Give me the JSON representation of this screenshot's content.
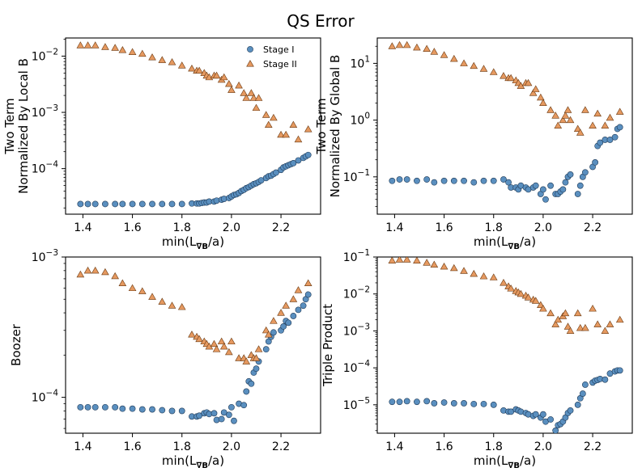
{
  "chart_data": {
    "title": "QS Error",
    "legend": {
      "placement": "top-right",
      "entries": [
        {
          "label": "Stage I",
          "marker": "circle",
          "color": "#5a8fbf"
        },
        {
          "label": "Stage II",
          "marker": "triangle",
          "color": "#e59960"
        }
      ]
    },
    "panels": [
      {
        "id": "two-term-local",
        "type": "scatter",
        "ylabel_lines": [
          "Two Term",
          "Normalized By Local B"
        ],
        "xlabel": "min(L",
        "xlabel_sub": "∇B",
        "xlabel_tail": "/a)",
        "xscale": "linear",
        "xlim": [
          1.33,
          2.36
        ],
        "xticks": [
          1.4,
          1.6,
          1.8,
          2.0,
          2.2
        ],
        "xtick_labels": [
          "1.4",
          "1.6",
          "1.8",
          "2.0",
          "2.2"
        ],
        "yscale": "log",
        "ylim": [
          1.55e-05,
          0.021
        ],
        "yticks": [
          0.01,
          0.001,
          0.0001
        ],
        "ytick_labels": [
          {
            "base": "10",
            "exp": "−2"
          },
          {
            "base": "10",
            "exp": "−3"
          },
          {
            "base": "10",
            "exp": "−4"
          }
        ],
        "show_legend": true,
        "series": [
          {
            "name": "Stage I",
            "x": [
              1.39,
              1.42,
              1.45,
              1.49,
              1.53,
              1.56,
              1.6,
              1.64,
              1.68,
              1.72,
              1.76,
              1.8,
              1.84,
              1.86,
              1.87,
              1.88,
              1.89,
              1.9,
              1.91,
              1.93,
              1.94,
              1.96,
              1.97,
              1.99,
              2.0,
              2.01,
              2.02,
              2.03,
              2.04,
              2.05,
              2.06,
              2.07,
              2.08,
              2.09,
              2.1,
              2.11,
              2.12,
              2.14,
              2.15,
              2.16,
              2.17,
              2.18,
              2.2,
              2.21,
              2.22,
              2.23,
              2.24,
              2.25,
              2.27,
              2.29,
              2.3,
              2.31
            ],
            "y": [
              2.35e-05,
              2.35e-05,
              2.35e-05,
              2.35e-05,
              2.35e-05,
              2.35e-05,
              2.35e-05,
              2.35e-05,
              2.35e-05,
              2.35e-05,
              2.35e-05,
              2.35e-05,
              2.4e-05,
              2.4e-05,
              2.4e-05,
              2.45e-05,
              2.5e-05,
              2.5e-05,
              2.6e-05,
              2.6e-05,
              2.7e-05,
              2.8e-05,
              2.9e-05,
              3e-05,
              3.2e-05,
              3.4e-05,
              3.5e-05,
              3.7e-05,
              4e-05,
              4.2e-05,
              4.5e-05,
              4.7e-05,
              5e-05,
              5.3e-05,
              5.5e-05,
              5.8e-05,
              6.2e-05,
              6.8e-05,
              7.3e-05,
              7.5e-05,
              8e-05,
              8.5e-05,
              9.5e-05,
              0.000105,
              0.00011,
              0.000115,
              0.00012,
              0.000125,
              0.00014,
              0.000155,
              0.000165,
              0.000175
            ]
          },
          {
            "name": "Stage II",
            "x": [
              1.39,
              1.42,
              1.45,
              1.49,
              1.53,
              1.56,
              1.6,
              1.64,
              1.68,
              1.72,
              1.76,
              1.8,
              1.84,
              1.86,
              1.87,
              1.89,
              1.9,
              1.91,
              1.93,
              1.94,
              1.96,
              1.97,
              1.99,
              2.0,
              2.03,
              2.05,
              2.06,
              2.08,
              2.09,
              2.1,
              2.11,
              2.14,
              2.15,
              2.17,
              2.2,
              2.22,
              2.25,
              2.27,
              2.31
            ],
            "y": [
              0.0155,
              0.0155,
              0.0155,
              0.0145,
              0.014,
              0.0128,
              0.0118,
              0.011,
              0.0095,
              0.0085,
              0.0078,
              0.0068,
              0.006,
              0.0055,
              0.0055,
              0.005,
              0.0045,
              0.0042,
              0.0045,
              0.0045,
              0.0038,
              0.0042,
              0.0032,
              0.0025,
              0.003,
              0.0022,
              0.0018,
              0.0022,
              0.0018,
              0.0012,
              0.0018,
              0.0009,
              0.0006,
              0.0008,
              0.0004,
              0.0004,
              0.0006,
              0.00033,
              0.0005
            ]
          }
        ]
      },
      {
        "id": "two-term-global",
        "type": "scatter",
        "ylabel_lines": [
          "Two Term",
          "Normalized By Global B"
        ],
        "xlabel": "min(L",
        "xlabel_sub": "∇B",
        "xlabel_tail": "/a)",
        "xscale": "linear",
        "xlim": [
          1.33,
          2.36
        ],
        "xticks": [
          1.4,
          1.6,
          1.8,
          2.0,
          2.2
        ],
        "xtick_labels": [
          "1.4",
          "1.6",
          "1.8",
          "2.0",
          "2.2"
        ],
        "yscale": "log",
        "ylim": [
          0.022,
          28
        ],
        "yticks": [
          10,
          1,
          0.1
        ],
        "ytick_labels": [
          {
            "base": "10",
            "exp": "1"
          },
          {
            "base": "10",
            "exp": "0"
          },
          {
            "base": "10",
            "exp": "−1"
          }
        ],
        "show_legend": false,
        "series": [
          {
            "name": "Stage I",
            "x": [
              1.39,
              1.42,
              1.45,
              1.49,
              1.53,
              1.56,
              1.6,
              1.64,
              1.68,
              1.72,
              1.76,
              1.8,
              1.84,
              1.86,
              1.87,
              1.89,
              1.9,
              1.91,
              1.93,
              1.94,
              1.96,
              1.97,
              1.99,
              2.0,
              2.01,
              2.03,
              2.05,
              2.06,
              2.07,
              2.08,
              2.09,
              2.1,
              2.11,
              2.14,
              2.15,
              2.16,
              2.17,
              2.2,
              2.21,
              2.22,
              2.23,
              2.25,
              2.27,
              2.29,
              2.3,
              2.31
            ],
            "y": [
              0.085,
              0.09,
              0.09,
              0.085,
              0.09,
              0.08,
              0.085,
              0.085,
              0.085,
              0.08,
              0.085,
              0.085,
              0.09,
              0.08,
              0.065,
              0.065,
              0.06,
              0.07,
              0.065,
              0.06,
              0.065,
              0.07,
              0.05,
              0.06,
              0.04,
              0.07,
              0.05,
              0.05,
              0.055,
              0.06,
              0.08,
              0.1,
              0.11,
              0.05,
              0.07,
              0.1,
              0.12,
              0.15,
              0.18,
              0.35,
              0.4,
              0.45,
              0.45,
              0.5,
              0.7,
              0.75
            ]
          },
          {
            "name": "Stage II",
            "x": [
              1.39,
              1.42,
              1.45,
              1.49,
              1.53,
              1.56,
              1.6,
              1.64,
              1.68,
              1.72,
              1.76,
              1.8,
              1.84,
              1.86,
              1.87,
              1.89,
              1.9,
              1.91,
              1.93,
              1.94,
              1.96,
              1.97,
              1.99,
              2.0,
              2.03,
              2.05,
              2.06,
              2.08,
              2.09,
              2.1,
              2.11,
              2.14,
              2.15,
              2.17,
              2.2,
              2.22,
              2.25,
              2.27,
              2.31
            ],
            "y": [
              20,
              21,
              21,
              19,
              18,
              16,
              14,
              12,
              10,
              9,
              8,
              7,
              6,
              5.5,
              5.5,
              5,
              4.5,
              4,
              4.5,
              4.5,
              3,
              3.5,
              2.5,
              2,
              1.5,
              1.2,
              0.8,
              1.0,
              1.2,
              1.5,
              1.0,
              0.7,
              0.6,
              1.5,
              0.8,
              1.3,
              0.8,
              1.1,
              1.4
            ]
          }
        ]
      },
      {
        "id": "boozer",
        "type": "scatter",
        "ylabel_lines": [
          "Boozer"
        ],
        "xlabel": "min(L",
        "xlabel_sub": "∇B",
        "xlabel_tail": "/a)",
        "xscale": "linear",
        "xlim": [
          1.33,
          2.36
        ],
        "xticks": [
          1.4,
          1.6,
          1.8,
          2.0,
          2.2
        ],
        "xtick_labels": [
          "1.4",
          "1.6",
          "1.8",
          "2.0",
          "2.2"
        ],
        "yscale": "log",
        "ylim": [
          5.55e-05,
          0.001
        ],
        "yticks": [
          0.001,
          0.0001
        ],
        "ytick_labels": [
          {
            "base": "10",
            "exp": "−3"
          },
          {
            "base": "10",
            "exp": "−4"
          }
        ],
        "show_legend": false,
        "series": [
          {
            "name": "Stage I",
            "x": [
              1.39,
              1.42,
              1.45,
              1.49,
              1.53,
              1.56,
              1.6,
              1.64,
              1.68,
              1.72,
              1.76,
              1.8,
              1.84,
              1.86,
              1.87,
              1.89,
              1.9,
              1.91,
              1.93,
              1.94,
              1.96,
              1.97,
              1.99,
              2.0,
              2.01,
              2.03,
              2.05,
              2.06,
              2.07,
              2.08,
              2.09,
              2.1,
              2.11,
              2.14,
              2.15,
              2.16,
              2.17,
              2.2,
              2.21,
              2.22,
              2.23,
              2.25,
              2.27,
              2.29,
              2.3,
              2.31
            ],
            "y": [
              8.5e-05,
              8.5e-05,
              8.5e-05,
              8.5e-05,
              8.5e-05,
              8.3e-05,
              8.3e-05,
              8.2e-05,
              8.2e-05,
              8.1e-05,
              8e-05,
              8e-05,
              7.3e-05,
              7.3e-05,
              7.4e-05,
              7.7e-05,
              7.8e-05,
              7.6e-05,
              7.7e-05,
              6.9e-05,
              7e-05,
              7.8e-05,
              7.5e-05,
              8.5e-05,
              6.8e-05,
              9e-05,
              8.8e-05,
              0.00011,
              0.00013,
              0.000125,
              0.00015,
              0.00016,
              0.00018,
              0.00022,
              0.00025,
              0.00027,
              0.00029,
              0.0003,
              0.00032,
              0.00035,
              0.00034,
              0.00038,
              0.00042,
              0.00045,
              0.0005,
              0.00054
            ]
          },
          {
            "name": "Stage II",
            "x": [
              1.39,
              1.42,
              1.45,
              1.49,
              1.53,
              1.56,
              1.6,
              1.64,
              1.68,
              1.72,
              1.76,
              1.8,
              1.84,
              1.86,
              1.87,
              1.89,
              1.9,
              1.91,
              1.93,
              1.94,
              1.96,
              1.97,
              1.99,
              2.0,
              2.03,
              2.05,
              2.06,
              2.08,
              2.09,
              2.1,
              2.11,
              2.14,
              2.15,
              2.17,
              2.2,
              2.22,
              2.25,
              2.27,
              2.31
            ],
            "y": [
              0.00075,
              0.0008,
              0.0008,
              0.00078,
              0.00073,
              0.00065,
              0.0006,
              0.00057,
              0.00052,
              0.00048,
              0.00045,
              0.00044,
              0.00028,
              0.00027,
              0.00026,
              0.00025,
              0.00024,
              0.00023,
              0.00024,
              0.00022,
              0.00025,
              0.00023,
              0.00021,
              0.00025,
              0.00019,
              0.00019,
              0.00018,
              0.0002,
              0.00019,
              0.00019,
              0.00022,
              0.0003,
              0.00028,
              0.00035,
              0.0004,
              0.00045,
              0.0005,
              0.00058,
              0.00065
            ]
          }
        ]
      },
      {
        "id": "triple-product",
        "type": "scatter",
        "ylabel_lines": [
          "Triple Product"
        ],
        "xlabel": "min(L",
        "xlabel_sub": "∇B",
        "xlabel_tail": "/a)",
        "xscale": "linear",
        "xlim": [
          1.33,
          2.36
        ],
        "xticks": [
          1.4,
          1.6,
          1.8,
          2.0,
          2.2
        ],
        "xtick_labels": [
          "1.4",
          "1.6",
          "1.8",
          "2.0",
          "2.2"
        ],
        "yscale": "log",
        "ylim": [
          1.7e-06,
          0.1
        ],
        "yticks": [
          0.1,
          0.01,
          0.001,
          0.0001,
          1e-05
        ],
        "ytick_labels": [
          {
            "base": "10",
            "exp": "−1"
          },
          {
            "base": "10",
            "exp": "−2"
          },
          {
            "base": "10",
            "exp": "−3"
          },
          {
            "base": "10",
            "exp": "−4"
          },
          {
            "base": "10",
            "exp": "−5"
          }
        ],
        "show_legend": false,
        "series": [
          {
            "name": "Stage I",
            "x": [
              1.39,
              1.42,
              1.45,
              1.49,
              1.53,
              1.56,
              1.6,
              1.64,
              1.68,
              1.72,
              1.76,
              1.8,
              1.84,
              1.86,
              1.87,
              1.89,
              1.9,
              1.91,
              1.93,
              1.94,
              1.96,
              1.97,
              1.99,
              2.0,
              2.01,
              2.03,
              2.05,
              2.06,
              2.07,
              2.08,
              2.09,
              2.1,
              2.11,
              2.14,
              2.15,
              2.16,
              2.17,
              2.2,
              2.21,
              2.22,
              2.23,
              2.25,
              2.27,
              2.29,
              2.3,
              2.31
            ],
            "y": [
              1.2e-05,
              1.2e-05,
              1.25e-05,
              1.2e-05,
              1.25e-05,
              1.1e-05,
              1.15e-05,
              1.1e-05,
              1.1e-05,
              1.05e-05,
              1.05e-05,
              1e-05,
              7e-06,
              6.5e-06,
              6.5e-06,
              7.5e-06,
              7e-06,
              6.5e-06,
              6e-06,
              5.5e-06,
              5e-06,
              5.5e-06,
              4.5e-06,
              5.5e-06,
              3.5e-06,
              4e-06,
              2e-06,
              2.8e-06,
              3e-06,
              3.5e-06,
              4.5e-06,
              6e-06,
              7e-06,
              1e-05,
              1.5e-05,
              2e-05,
              3.5e-05,
              4e-05,
              4.5e-05,
              4.7e-05,
              5e-05,
              4.8e-05,
              7e-05,
              8e-05,
              8.5e-05,
              8.5e-05
            ]
          },
          {
            "name": "Stage II",
            "x": [
              1.39,
              1.42,
              1.45,
              1.49,
              1.53,
              1.56,
              1.6,
              1.64,
              1.68,
              1.72,
              1.76,
              1.8,
              1.84,
              1.86,
              1.87,
              1.89,
              1.9,
              1.91,
              1.93,
              1.94,
              1.96,
              1.97,
              1.99,
              2.0,
              2.03,
              2.05,
              2.06,
              2.08,
              2.09,
              2.1,
              2.11,
              2.14,
              2.15,
              2.17,
              2.2,
              2.22,
              2.25,
              2.27,
              2.31
            ],
            "y": [
              0.08,
              0.085,
              0.085,
              0.08,
              0.07,
              0.062,
              0.055,
              0.05,
              0.042,
              0.035,
              0.03,
              0.028,
              0.02,
              0.016,
              0.014,
              0.012,
              0.011,
              0.01,
              0.009,
              0.008,
              0.007,
              0.0065,
              0.005,
              0.004,
              0.003,
              0.0015,
              0.002,
              0.0025,
              0.003,
              0.0013,
              0.001,
              0.003,
              0.0012,
              0.0012,
              0.004,
              0.0015,
              0.001,
              0.0015,
              0.002
            ]
          }
        ]
      }
    ]
  }
}
